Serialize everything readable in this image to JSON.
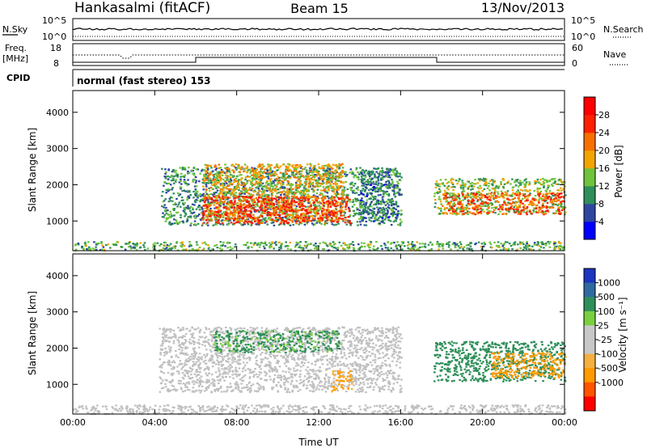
{
  "header": {
    "station": "Hankasalmi (fitACF)",
    "beam": "Beam 15",
    "date": "13/Nov/2013"
  },
  "panels": {
    "nsky": {
      "left_label": "N.Sky",
      "left_ticks": [
        "10^5",
        "10^0"
      ],
      "right_label": "N.Search",
      "right_ticks": [
        "10^5",
        "10^0"
      ]
    },
    "freq": {
      "left_label_1": "Freq.",
      "left_label_2": "[MHz]",
      "left_ticks": [
        "18",
        "8"
      ],
      "right_label": "Nave",
      "right_ticks": [
        "60",
        "0"
      ]
    },
    "cpid": {
      "label": "CPID",
      "text": "normal (fast stereo) 153"
    }
  },
  "colors": {
    "power_scale": [
      "#0000ff",
      "#2f46a0",
      "#2f8f5a",
      "#6fc43c",
      "#f2a400",
      "#f97000",
      "#ff2000",
      "#ff0000"
    ],
    "velocity_scale": [
      "#ff0000",
      "#ff5500",
      "#ff9a00",
      "#f5b040",
      "#c8c8c8",
      "#c8c8c8",
      "#7ad040",
      "#2f8f5a",
      "#2f6aa0",
      "#1a35c0"
    ],
    "ground_scatter": "#c0c0c0"
  },
  "chart_data": [
    {
      "type": "heatmap",
      "title": "",
      "xlabel": "Time UT",
      "ylabel": "Slant Range [km]",
      "xlim": [
        0,
        24
      ],
      "ylim": [
        180,
        4600
      ],
      "x_ticks": [
        "00:00",
        "04:00",
        "08:00",
        "12:00",
        "16:00",
        "20:00",
        "00:00"
      ],
      "y_ticks": [
        1000,
        2000,
        3000,
        4000
      ],
      "colorbar": {
        "label": "Power [dB]",
        "range": [
          0,
          32
        ],
        "tick_values": [
          4,
          8,
          12,
          16,
          20,
          24,
          28
        ],
        "tick_labels": [
          "4",
          "8",
          "12",
          "16",
          "20",
          "24",
          "28"
        ]
      },
      "regions": [
        {
          "t": [
            4.3,
            16.0
          ],
          "range": [
            900,
            2500
          ],
          "value": 10
        },
        {
          "t": [
            6.3,
            13.2
          ],
          "range": [
            1000,
            2600
          ],
          "value": 18
        },
        {
          "t": [
            6.3,
            13.5
          ],
          "range": [
            950,
            1700
          ],
          "value": 26
        },
        {
          "t": [
            14.0,
            15.9
          ],
          "range": [
            1000,
            2400
          ],
          "value": 8
        },
        {
          "t": [
            17.6,
            24.0
          ],
          "range": [
            1200,
            2200
          ],
          "value": 14
        },
        {
          "t": [
            18.0,
            24.0
          ],
          "range": [
            1200,
            1800
          ],
          "value": 24
        },
        {
          "t": [
            0.0,
            24.0
          ],
          "range": [
            200,
            450
          ],
          "value": 12
        }
      ]
    },
    {
      "type": "heatmap",
      "title": "",
      "xlabel": "Time UT",
      "ylabel": "Slant Range [km]",
      "xlim": [
        0,
        24
      ],
      "ylim": [
        180,
        4600
      ],
      "x_ticks": [
        "00:00",
        "04:00",
        "08:00",
        "12:00",
        "16:00",
        "20:00",
        "00:00"
      ],
      "y_ticks": [
        1000,
        2000,
        3000,
        4000
      ],
      "colorbar": {
        "label": "Velocity [m s⁻¹]",
        "tick_labels": [
          "1000",
          "500",
          "100",
          "25",
          "-25",
          "-100",
          "-500",
          "-1000"
        ]
      },
      "regions": [
        {
          "t": [
            4.2,
            16.0
          ],
          "range": [
            800,
            2600
          ],
          "value": 0,
          "type": "ground-scatter"
        },
        {
          "t": [
            6.8,
            13.0
          ],
          "range": [
            1900,
            2500
          ],
          "value": 150
        },
        {
          "t": [
            12.6,
            13.6
          ],
          "range": [
            800,
            1400
          ],
          "value": -150
        },
        {
          "t": [
            17.6,
            24.0
          ],
          "range": [
            1100,
            2200
          ],
          "value": 300
        },
        {
          "t": [
            20.4,
            24.0
          ],
          "range": [
            1200,
            1900
          ],
          "value": -200
        },
        {
          "t": [
            0.0,
            24.0
          ],
          "range": [
            200,
            450
          ],
          "value": 0,
          "type": "ground-scatter"
        }
      ]
    }
  ]
}
